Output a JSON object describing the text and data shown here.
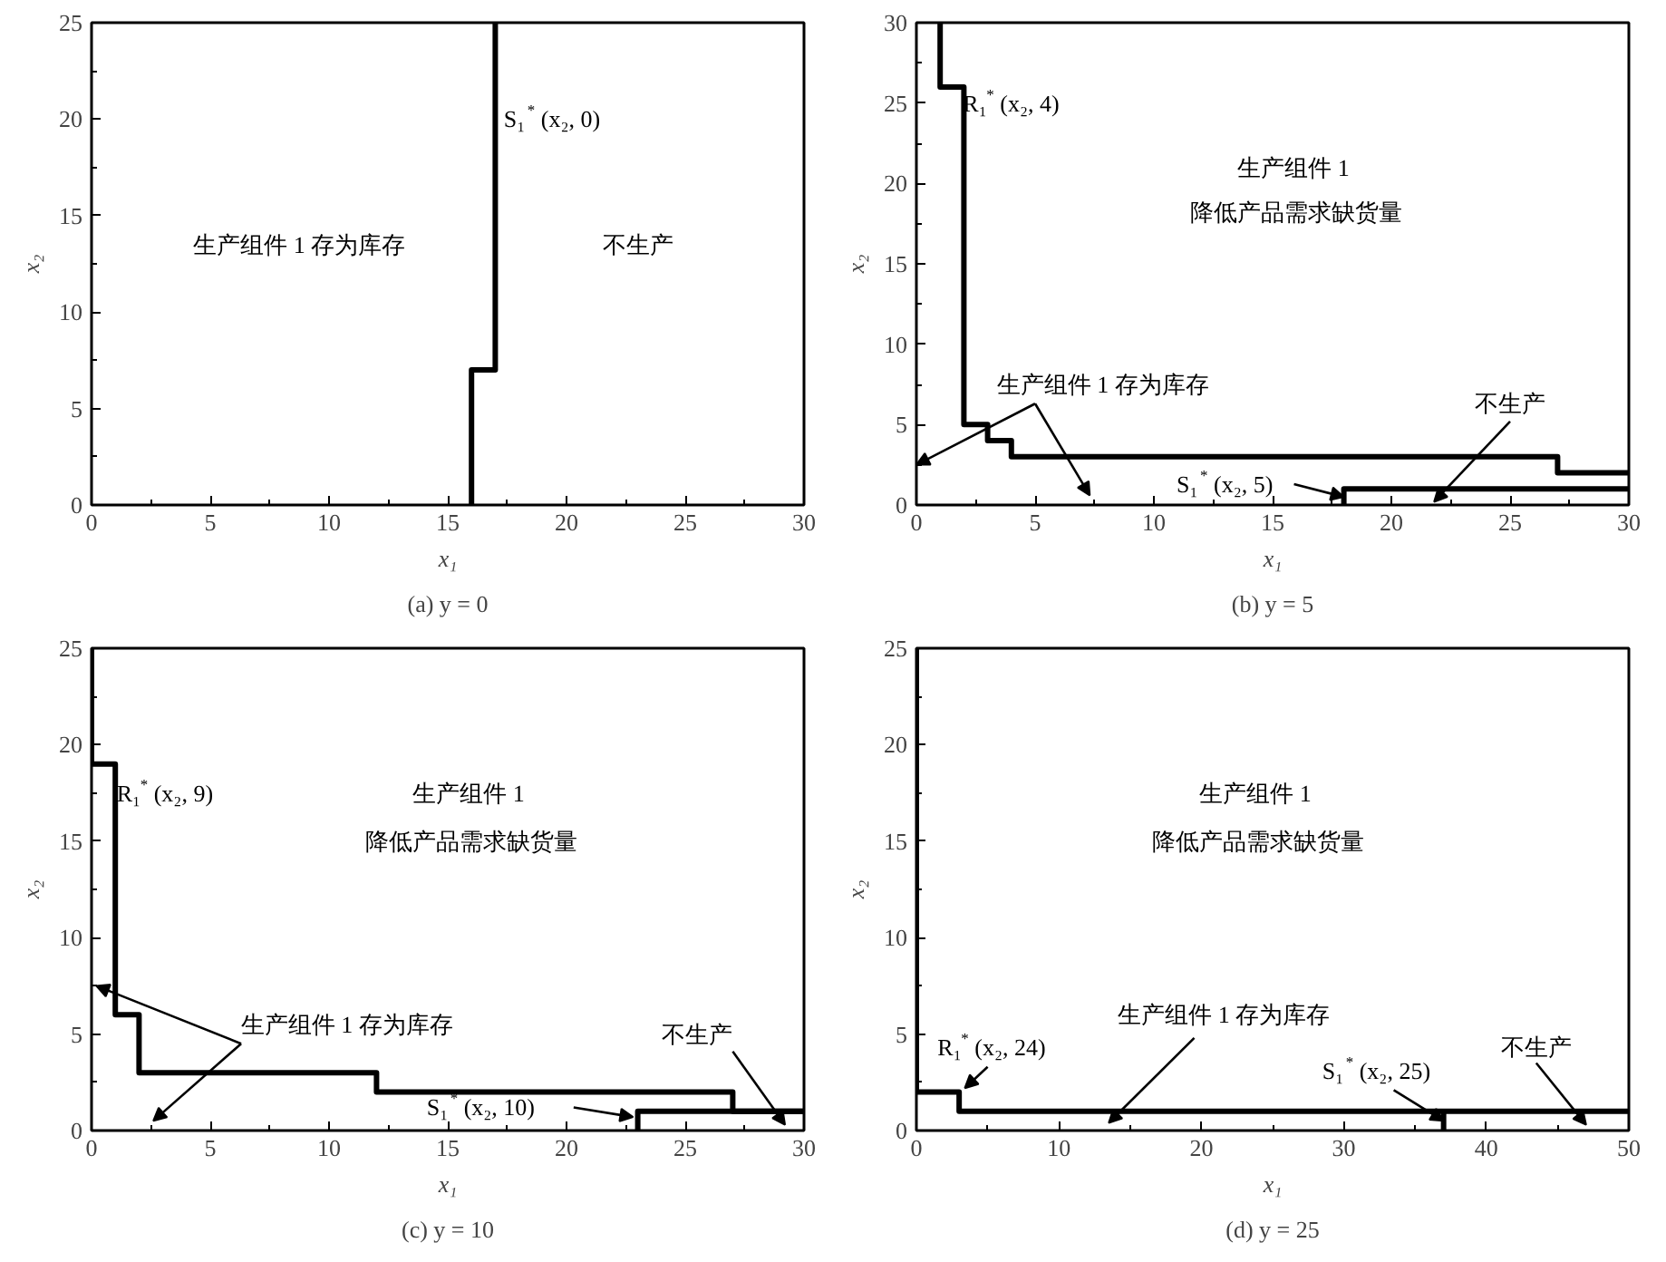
{
  "chart_data": [
    {
      "type": "line",
      "title": "(a) y = 0",
      "xlabel": "x₁",
      "ylabel": "x₂",
      "xlim": [
        0,
        30
      ],
      "ylim": [
        0,
        25
      ],
      "xticks": [
        0,
        5,
        10,
        15,
        20,
        25,
        30
      ],
      "yticks": [
        0,
        5,
        10,
        15,
        20,
        25
      ],
      "grid": false,
      "marker": "none",
      "line_style": "solid",
      "series": [
        {
          "color": "#000000",
          "x": [
            16,
            16,
            17,
            17
          ],
          "values": [
            0,
            7,
            7,
            25
          ]
        }
      ],
      "annotations": [
        "S₁$^{*}$ (x₂, 0)",
        "生产组件 1 存为库存",
        "不生产"
      ]
    },
    {
      "type": "line",
      "title": "(b) y = 5",
      "xlabel": "x₁",
      "ylabel": "x₂",
      "xlim": [
        0,
        30
      ],
      "ylim": [
        0,
        30
      ],
      "xticks": [
        0,
        5,
        10,
        15,
        20,
        25,
        30
      ],
      "yticks": [
        0,
        5,
        10,
        15,
        20,
        25,
        30
      ],
      "grid": false,
      "marker": "none",
      "line_style": "solid",
      "series": [
        {
          "color": "#000000",
          "x": [
            1,
            1,
            2,
            2,
            3,
            3,
            4,
            4,
            27,
            27,
            30
          ],
          "values": [
            30,
            26,
            26,
            5,
            5,
            4,
            4,
            3,
            3,
            2,
            2
          ]
        },
        {
          "color": "#000000",
          "x": [
            18,
            18,
            30
          ],
          "values": [
            0,
            1,
            1
          ]
        }
      ],
      "annotations": [
        "R₁$^{*}$ (x₂, 4)",
        "生产组件 1",
        "降低产品需求缺货量",
        "生产组件 1 存为库存",
        "不生产",
        {
          "text": "S₁$^{*}$ (x₂, 5)",
          "x": 18,
          "y": 0.5
        }
      ]
    },
    {
      "type": "line",
      "title": "(c) y = 10",
      "xlabel": "x₁",
      "ylabel": "x₂",
      "xlim": [
        0,
        30
      ],
      "ylim": [
        0,
        25
      ],
      "xticks": [
        0,
        5,
        10,
        15,
        20,
        25,
        30
      ],
      "yticks": [
        0,
        5,
        10,
        15,
        20,
        25
      ],
      "grid": false,
      "marker": "none",
      "line_style": "solid",
      "series": [
        {
          "color": "#000000",
          "x": [
            0,
            0,
            1,
            1,
            2,
            2,
            12,
            12,
            27,
            27,
            30
          ],
          "values": [
            25,
            19,
            19,
            6,
            6,
            3,
            3,
            2,
            2,
            1,
            1
          ]
        },
        {
          "color": "#000000",
          "x": [
            23,
            23,
            30
          ],
          "values": [
            0,
            1,
            1
          ]
        }
      ],
      "annotations": [
        "R₁$^{*}$ (x₂, 9)",
        "生产组件 1",
        "降低产品需求缺货量",
        "生产组件 1 存为库存",
        "不生产",
        "S₁$^{*}$ (x₂, 10)"
      ]
    },
    {
      "type": "line",
      "title": "(d) y = 25",
      "xlabel": "x₁",
      "ylabel": "x₂",
      "xlim": [
        0,
        50
      ],
      "ylim": [
        0,
        25
      ],
      "xticks": [
        0,
        10,
        20,
        30,
        40,
        50
      ],
      "yticks": [
        0,
        5,
        10,
        15,
        20,
        25
      ],
      "grid": false,
      "marker": "none",
      "line_style": "solid",
      "series": [
        {
          "color": "#000000",
          "x": [
            0,
            0,
            3,
            3,
            50
          ],
          "values": [
            25,
            2,
            2,
            1,
            1
          ]
        },
        {
          "color": "#000000",
          "x": [
            37,
            37
          ],
          "values": [
            0,
            1
          ]
        }
      ],
      "annotations": [
        "R₁$^{*}$ (x₂, 24)",
        "生产组件 1",
        "降低产品需求缺货量",
        "生产组件 1 存为库存",
        {
          "text": "S₁$^{*}$ (x₂, 25)",
          "x": 37,
          "y": 0.5
        },
        "不生产"
      ]
    }
  ]
}
